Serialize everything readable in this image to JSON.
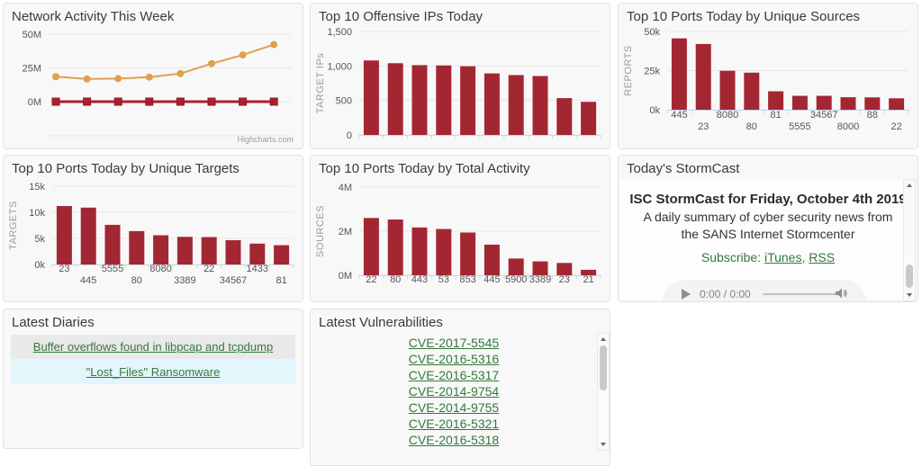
{
  "panels": {
    "network_activity": {
      "title": "Network Activity This Week",
      "credit": "Highcharts.com"
    },
    "offensive_ips": {
      "title": "Top 10 Offensive IPs Today"
    },
    "ports_sources": {
      "title": "Top 10 Ports Today by Unique Sources"
    },
    "ports_targets": {
      "title": "Top 10 Ports Today by Unique Targets"
    },
    "ports_activity": {
      "title": "Top 10 Ports Today by Total Activity"
    },
    "stormcast": {
      "title": "Today's StormCast",
      "heading": "ISC StormCast for Friday, October 4th 2019",
      "description": "A daily summary of cyber security news from the SANS Internet Stormcenter",
      "subscribe_label": "Subscribe: ",
      "link_itunes": "iTunes",
      "separator": ", ",
      "link_rss": "RSS",
      "audio": {
        "time": "0:00 / 0:00"
      }
    },
    "diaries": {
      "title": "Latest Diaries",
      "items": [
        "Buffer overflows found in libpcap and tcpdump",
        "\"Lost_Files\" Ransomware"
      ]
    },
    "vulnerabilities": {
      "title": "Latest Vulnerabilities",
      "items": [
        "CVE-2017-5545",
        "CVE-2016-5316",
        "CVE-2016-5317",
        "CVE-2014-9754",
        "CVE-2014-9755",
        "CVE-2016-5321",
        "CVE-2016-5318"
      ]
    }
  },
  "colors": {
    "bar_maroon": "#a32733",
    "line_orange": "#e0a050",
    "line_maroon": "#ad1f2d",
    "link_green": "#35793b",
    "grid": "#e7e7e7",
    "axis": "#ccd6eb",
    "tick_label": "#555555",
    "axis_title": "#999999"
  },
  "chart_data": [
    {
      "id": "network_activity",
      "type": "line",
      "title": "Network Activity This Week",
      "xlabel": "",
      "ylabel": "",
      "yticks": [
        "0M",
        "25M",
        "50M"
      ],
      "ylim_millions": [
        0,
        50
      ],
      "grid": true,
      "legend": "none",
      "series": [
        {
          "name": "orange-series",
          "color": "#e0a050",
          "marker": "circle",
          "values_millions": [
            18.5,
            16.8,
            17.1,
            18.2,
            20.8,
            28.2,
            34.6,
            42.3
          ]
        },
        {
          "name": "maroon-series",
          "color": "#ad1f2d",
          "marker": "square",
          "values_millions": [
            0,
            0,
            0,
            0,
            0,
            0,
            0,
            0
          ]
        }
      ],
      "credit": "Highcharts.com"
    },
    {
      "id": "offensive_ips",
      "type": "bar",
      "title": "Top 10 Offensive IPs Today",
      "xlabel": "",
      "ylabel": "TARGET IPs",
      "yticks": [
        "0",
        "500",
        "1,000",
        "1,500"
      ],
      "ylim": [
        0,
        1500
      ],
      "categories": [],
      "staggered_labels": false,
      "values": [
        1080,
        1040,
        1012,
        1008,
        996,
        892,
        868,
        854,
        534,
        480
      ]
    },
    {
      "id": "ports_sources",
      "type": "bar",
      "title": "Top 10 Ports Today by Unique Sources",
      "xlabel": "",
      "ylabel": "REPORTS",
      "yticks": [
        "0k",
        "25k",
        "50k"
      ],
      "ylim": [
        0,
        50000
      ],
      "categories": [
        "445",
        "23",
        "8080",
        "80",
        "81",
        "5555",
        "34567",
        "8000",
        "88",
        "22"
      ],
      "staggered_labels": true,
      "values": [
        45600,
        42000,
        24900,
        23700,
        11800,
        8900,
        8900,
        8000,
        7900,
        7300
      ]
    },
    {
      "id": "ports_targets",
      "type": "bar",
      "title": "Top 10 Ports Today by Unique Targets",
      "xlabel": "",
      "ylabel": "TARGETS",
      "yticks": [
        "0k",
        "5k",
        "10k",
        "15k"
      ],
      "ylim": [
        0,
        15000
      ],
      "categories": [
        "23",
        "445",
        "5555",
        "80",
        "8080",
        "3389",
        "22",
        "34567",
        "1433",
        "81"
      ],
      "staggered_labels": true,
      "values": [
        11200,
        10900,
        7600,
        6400,
        5600,
        5300,
        5250,
        4650,
        4000,
        3700
      ]
    },
    {
      "id": "ports_activity",
      "type": "bar",
      "title": "Top 10 Ports Today by Total Activity",
      "xlabel": "",
      "ylabel": "SOURCES",
      "yticks": [
        "0M",
        "2M",
        "4M"
      ],
      "ylim": [
        0,
        4000000
      ],
      "categories": [
        "22",
        "80",
        "443",
        "53",
        "853",
        "445",
        "5900",
        "3389",
        "23",
        "21"
      ],
      "staggered_labels": false,
      "values": [
        2600000,
        2530000,
        2170000,
        2100000,
        1940000,
        1390000,
        760000,
        630000,
        560000,
        250000
      ]
    }
  ]
}
